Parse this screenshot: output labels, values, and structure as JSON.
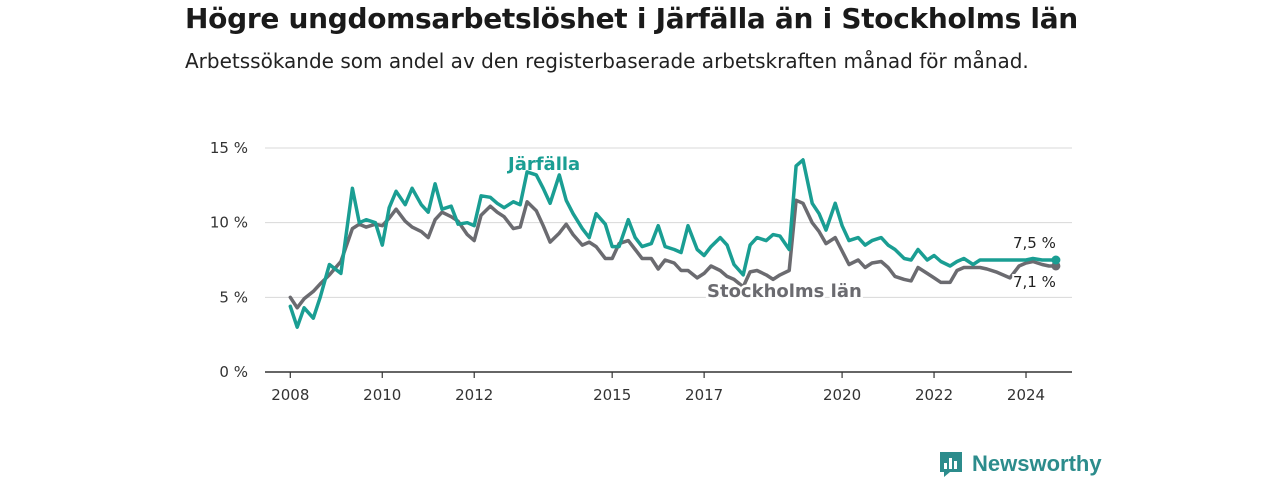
{
  "title": "Högre ungdomsarbetslöshet i Järfälla än i Stockholms län",
  "subtitle": "Arbetssökande som andel av den registerbaserade arbetskraften månad för månad.",
  "brand": {
    "name": "Newsworthy",
    "color": "#2c8c8c"
  },
  "chart_data": {
    "type": "line",
    "ylim": [
      0,
      15
    ],
    "y_ticks": [
      0,
      5,
      10,
      15
    ],
    "y_tick_labels": [
      "0 %",
      "5 %",
      "10 %",
      "15 %"
    ],
    "x_ticks": [
      2008,
      2010,
      2012,
      2015,
      2017,
      2020,
      2022,
      2024
    ],
    "x_tick_labels": [
      "2008",
      "2010",
      "2012",
      "2015",
      "2017",
      "2020",
      "2022",
      "2024"
    ],
    "grid": true,
    "series": [
      {
        "name": "Järfälla",
        "color": "#1a9e93",
        "end_label": "7,5 %",
        "x": [
          2008.0,
          2008.15,
          2008.3,
          2008.5,
          2008.65,
          2008.85,
          2009.1,
          2009.35,
          2009.5,
          2009.65,
          2009.85,
          2010.0,
          2010.15,
          2010.3,
          2010.5,
          2010.65,
          2010.85,
          2011.0,
          2011.15,
          2011.3,
          2011.5,
          2011.65,
          2011.85,
          2012.0,
          2012.15,
          2012.35,
          2012.5,
          2012.65,
          2012.85,
          2013.0,
          2013.15,
          2013.35,
          2013.5,
          2013.65,
          2013.85,
          2014.0,
          2014.15,
          2014.35,
          2014.5,
          2014.65,
          2014.85,
          2015.0,
          2015.15,
          2015.35,
          2015.5,
          2015.65,
          2015.85,
          2016.0,
          2016.15,
          2016.35,
          2016.5,
          2016.65,
          2016.85,
          2017.0,
          2017.15,
          2017.35,
          2017.5,
          2017.65,
          2017.85,
          2018.0,
          2018.15,
          2018.35,
          2018.5,
          2018.65,
          2018.85,
          2019.0,
          2019.15,
          2019.35,
          2019.5,
          2019.65,
          2019.85,
          2020.0,
          2020.15,
          2020.35,
          2020.5,
          2020.65,
          2020.85,
          2021.0,
          2021.15,
          2021.35,
          2021.5,
          2021.65,
          2021.85,
          2022.0,
          2022.15,
          2022.35,
          2022.5,
          2022.65,
          2022.85,
          2023.0,
          2023.15,
          2023.35,
          2023.5,
          2023.65,
          2023.85,
          2024.0,
          2024.15,
          2024.35,
          2024.5,
          2024.65
        ],
        "values": [
          4.4,
          3.0,
          4.3,
          3.6,
          5.0,
          7.2,
          6.6,
          12.3,
          10.0,
          10.2,
          10.0,
          8.5,
          11.0,
          12.1,
          11.2,
          12.3,
          11.2,
          10.7,
          12.6,
          10.9,
          11.1,
          9.9,
          10.0,
          9.8,
          11.8,
          11.7,
          11.3,
          11.0,
          11.4,
          11.2,
          13.4,
          13.2,
          12.3,
          11.3,
          13.2,
          11.5,
          10.6,
          9.6,
          9.0,
          10.6,
          9.9,
          8.4,
          8.4,
          10.2,
          9.0,
          8.4,
          8.6,
          9.8,
          8.4,
          8.2,
          8.0,
          9.8,
          8.2,
          7.8,
          8.4,
          9.0,
          8.5,
          7.2,
          6.5,
          8.5,
          9.0,
          8.8,
          9.2,
          9.1,
          8.2,
          13.8,
          14.2,
          11.3,
          10.6,
          9.5,
          11.3,
          9.8,
          8.8,
          9.0,
          8.5,
          8.8,
          9.0,
          8.5,
          8.2,
          7.6,
          7.5,
          8.2,
          7.5,
          7.8,
          7.4,
          7.1,
          7.4,
          7.6,
          7.2,
          7.5,
          7.5,
          7.5,
          7.5,
          7.5,
          7.5,
          7.5,
          7.6,
          7.5,
          7.5,
          7.5
        ]
      },
      {
        "name": "Stockholms län",
        "color": "#6b6b70",
        "end_label": "7,1 %",
        "x": [
          2008.0,
          2008.15,
          2008.3,
          2008.5,
          2008.65,
          2008.85,
          2009.1,
          2009.35,
          2009.5,
          2009.65,
          2009.85,
          2010.0,
          2010.15,
          2010.3,
          2010.5,
          2010.65,
          2010.85,
          2011.0,
          2011.15,
          2011.3,
          2011.5,
          2011.65,
          2011.85,
          2012.0,
          2012.15,
          2012.35,
          2012.5,
          2012.65,
          2012.85,
          2013.0,
          2013.15,
          2013.35,
          2013.5,
          2013.65,
          2013.85,
          2014.0,
          2014.15,
          2014.35,
          2014.5,
          2014.65,
          2014.85,
          2015.0,
          2015.15,
          2015.35,
          2015.5,
          2015.65,
          2015.85,
          2016.0,
          2016.15,
          2016.35,
          2016.5,
          2016.65,
          2016.85,
          2017.0,
          2017.15,
          2017.35,
          2017.5,
          2017.65,
          2017.85,
          2018.0,
          2018.15,
          2018.35,
          2018.5,
          2018.65,
          2018.85,
          2019.0,
          2019.15,
          2019.35,
          2019.5,
          2019.65,
          2019.85,
          2020.0,
          2020.15,
          2020.35,
          2020.5,
          2020.65,
          2020.85,
          2021.0,
          2021.15,
          2021.35,
          2021.5,
          2021.65,
          2021.85,
          2022.0,
          2022.15,
          2022.35,
          2022.5,
          2022.65,
          2022.85,
          2023.0,
          2023.15,
          2023.35,
          2023.5,
          2023.65,
          2023.85,
          2024.0,
          2024.15,
          2024.35,
          2024.5,
          2024.65
        ],
        "values": [
          5.0,
          4.3,
          4.9,
          5.4,
          5.9,
          6.5,
          7.4,
          9.6,
          9.9,
          9.7,
          9.9,
          9.8,
          10.3,
          10.9,
          10.1,
          9.7,
          9.4,
          9.0,
          10.2,
          10.7,
          10.4,
          10.1,
          9.2,
          8.8,
          10.5,
          11.1,
          10.7,
          10.4,
          9.6,
          9.7,
          11.4,
          10.8,
          9.8,
          8.7,
          9.3,
          9.9,
          9.2,
          8.5,
          8.7,
          8.4,
          7.6,
          7.6,
          8.6,
          8.8,
          8.2,
          7.6,
          7.6,
          6.9,
          7.5,
          7.3,
          6.8,
          6.8,
          6.3,
          6.6,
          7.1,
          6.8,
          6.4,
          6.2,
          5.7,
          6.7,
          6.8,
          6.5,
          6.2,
          6.5,
          6.8,
          11.5,
          11.3,
          10.0,
          9.4,
          8.6,
          9.0,
          8.1,
          7.2,
          7.5,
          7.0,
          7.3,
          7.4,
          7.0,
          6.4,
          6.2,
          6.1,
          7.0,
          6.6,
          6.3,
          6.0,
          6.0,
          6.8,
          7.0,
          7.0,
          7.0,
          6.9,
          6.7,
          6.5,
          6.3,
          7.1,
          7.3,
          7.4,
          7.2,
          7.1,
          7.1
        ]
      }
    ]
  }
}
